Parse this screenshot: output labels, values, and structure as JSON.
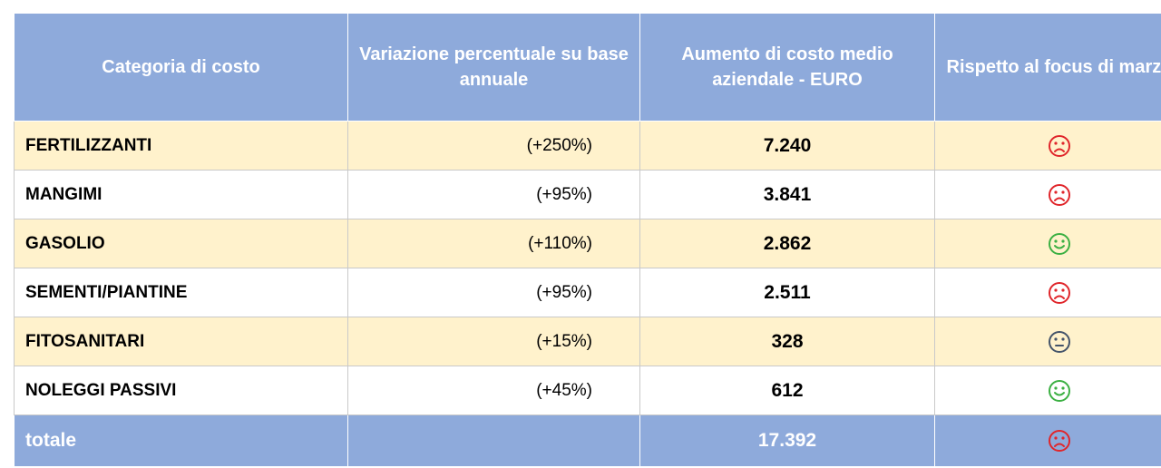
{
  "table": {
    "headers": [
      "Categoria di costo",
      "Variazione percentuale su base annuale",
      "Aumento di costo medio aziendale - EURO",
      "Rispetto al focus di marzo"
    ],
    "rows": [
      {
        "category": "FERTILIZZANTI",
        "variation": "(+250%)",
        "amount": "7.240",
        "mood": "sad"
      },
      {
        "category": "MANGIMI",
        "variation": "(+95%)",
        "amount": "3.841",
        "mood": "sad"
      },
      {
        "category": "GASOLIO",
        "variation": "(+110%)",
        "amount": "2.862",
        "mood": "happy"
      },
      {
        "category": "SEMENTI/PIANTINE",
        "variation": "(+95%)",
        "amount": "2.511",
        "mood": "sad"
      },
      {
        "category": "FITOSANITARI",
        "variation": "(+15%)",
        "amount": "328",
        "mood": "neutral"
      },
      {
        "category": "NOLEGGI PASSIVI",
        "variation": "(+45%)",
        "amount": "612",
        "mood": "happy"
      }
    ],
    "total": {
      "category": "totale",
      "amount": "17.392",
      "mood": "sad"
    }
  }
}
